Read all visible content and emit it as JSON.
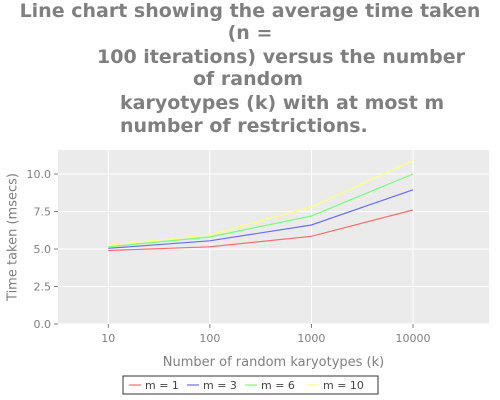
{
  "chart_data": {
    "type": "line",
    "title_lines": [
      "Line chart showing the average time taken",
      "(n =",
      "100 iterations) versus the number",
      "of random",
      "karyotypes (k) with at most m",
      "number of restrictions."
    ],
    "xlabel": "Number of random karyotypes (k)",
    "ylabel": "Time taken (msecs)",
    "x_scale": "log",
    "x": [
      10,
      100,
      1000,
      10000
    ],
    "x_tick_labels": [
      "10",
      "100",
      "1000",
      "10000"
    ],
    "xlim": [
      3.2,
      56000
    ],
    "ylim": [
      0,
      11.6
    ],
    "y_ticks": [
      0,
      2.5,
      5,
      7.5,
      10
    ],
    "y_tick_labels": [
      "0.0",
      "2.5",
      "5.0",
      "7.5",
      "10.0"
    ],
    "grid": true,
    "legend_position": "bottom",
    "series": [
      {
        "name": "m = 1",
        "color": "#ff6b6b",
        "values": [
          4.9,
          5.15,
          5.85,
          7.6
        ]
      },
      {
        "name": "m = 3",
        "color": "#6b6bff",
        "values": [
          5.05,
          5.55,
          6.6,
          8.95
        ]
      },
      {
        "name": "m = 6",
        "color": "#77ff77",
        "values": [
          5.15,
          5.8,
          7.2,
          10.0
        ]
      },
      {
        "name": "m = 10",
        "color": "#ffff77",
        "values": [
          5.25,
          5.95,
          7.8,
          10.9
        ]
      }
    ],
    "plot_background": "#ebebeb",
    "grid_color": "#ffffff",
    "text_color": "#7f7f7f"
  }
}
